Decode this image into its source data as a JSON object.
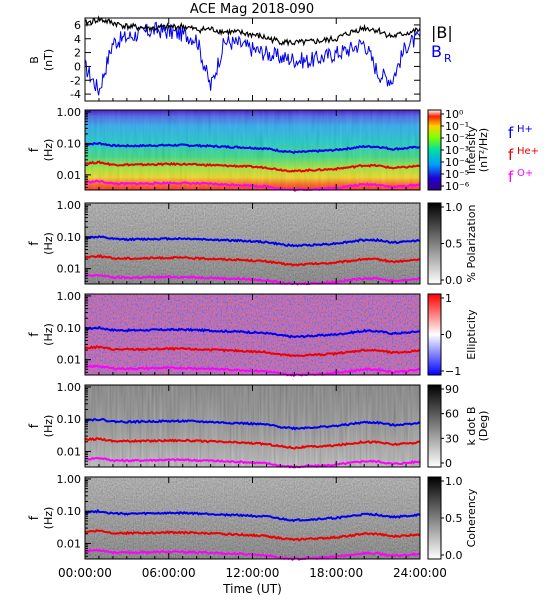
{
  "title": "ACE Mag 2018-090",
  "colors": {
    "b_total": "#000000",
    "b_r": "#0000ee",
    "f_h": "#0000ee",
    "f_he": "#ee0000",
    "f_o": "#ff00ff"
  },
  "chart_data": [
    {
      "type": "line",
      "ylabel": [
        "B",
        "(nT)"
      ],
      "ylim": [
        -5,
        7
      ],
      "yticks": [
        "6",
        "4",
        "2",
        "0",
        "-2",
        "-4"
      ],
      "legend": {
        "b_total": "|B|",
        "b_r": "B",
        "b_r_sub": "R"
      },
      "x_hours": [
        0,
        1,
        2,
        3,
        4,
        5,
        6,
        7,
        8,
        9,
        10,
        11,
        12,
        13,
        14,
        15,
        16,
        17,
        18,
        19,
        20,
        21,
        22,
        23,
        24
      ],
      "series": [
        {
          "key": "b_total",
          "values": [
            6.2,
            6.8,
            6.3,
            5.8,
            5.6,
            5.5,
            5.7,
            5.8,
            5.3,
            5.4,
            5.0,
            4.9,
            4.6,
            4.1,
            3.6,
            3.4,
            3.5,
            3.7,
            4.0,
            4.9,
            5.6,
            5.2,
            4.3,
            4.8,
            5.3
          ]
        },
        {
          "key": "b_r",
          "values": [
            0.0,
            -3.5,
            3.5,
            4.2,
            4.8,
            5.3,
            5.0,
            4.7,
            4.0,
            -3.0,
            3.6,
            3.3,
            2.5,
            1.9,
            1.3,
            1.0,
            0.8,
            1.3,
            1.9,
            2.5,
            3.5,
            -1.0,
            -2.0,
            3.0,
            4.2
          ]
        }
      ]
    },
    {
      "type": "heatmap",
      "ylabel": [
        "f",
        "(Hz)"
      ],
      "colorbar": {
        "label": [
          "Intensity",
          "(nT²/Hz)"
        ],
        "ticks": [
          "10⁰",
          "10⁻¹",
          "10⁻²",
          "10⁻³",
          "10⁻⁴",
          "10⁻⁵",
          "10⁻⁶"
        ]
      },
      "legend": [
        {
          "base": "f",
          "sub": "H+"
        },
        {
          "base": "f",
          "sub": "He+"
        },
        {
          "base": "f",
          "sub": "O+"
        }
      ]
    },
    {
      "type": "heatmap",
      "ylabel": [
        "f",
        "(Hz)"
      ],
      "colorbar": {
        "label": [
          "% Polarization"
        ],
        "ticks": [
          "1.0",
          "0.5",
          "0.0"
        ]
      }
    },
    {
      "type": "heatmap",
      "ylabel": [
        "f",
        "(Hz)"
      ],
      "colorbar": {
        "label": [
          "Ellipticity"
        ],
        "ticks": [
          "1",
          "0",
          "−1"
        ]
      }
    },
    {
      "type": "heatmap",
      "ylabel": [
        "f",
        "(Hz)"
      ],
      "colorbar": {
        "label": [
          "k dot B",
          "(Deg)"
        ],
        "ticks": [
          "90",
          "60",
          "30",
          "0"
        ]
      }
    },
    {
      "type": "heatmap",
      "ylabel": [
        "f",
        "(Hz)"
      ],
      "colorbar": {
        "label": [
          "Coherency"
        ],
        "ticks": [
          "1.0",
          "0.5",
          "0.0"
        ]
      }
    }
  ],
  "shared": {
    "freq_yticks": [
      "1.00",
      "0.10",
      "0.01"
    ],
    "freq_ylim": [
      0.0033,
      1.15
    ],
    "xlabel": "Time (UT)",
    "xticks": [
      "00:00:00",
      "06:00:00",
      "12:00:00",
      "18:00:00",
      "24:00:00"
    ],
    "xlim_hours": [
      0,
      24
    ],
    "gyro_x_hours": [
      0,
      1,
      2,
      3,
      4,
      5,
      6,
      7,
      8,
      9,
      10,
      11,
      12,
      13,
      14,
      15,
      16,
      17,
      18,
      19,
      20,
      21,
      22,
      23,
      24
    ],
    "f_h_plus": [
      0.093,
      0.1,
      0.085,
      0.083,
      0.084,
      0.086,
      0.087,
      0.088,
      0.085,
      0.082,
      0.078,
      0.076,
      0.072,
      0.068,
      0.058,
      0.052,
      0.055,
      0.058,
      0.062,
      0.07,
      0.08,
      0.078,
      0.066,
      0.07,
      0.078
    ],
    "f_he_plus": [
      0.023,
      0.025,
      0.021,
      0.021,
      0.021,
      0.0215,
      0.022,
      0.022,
      0.021,
      0.0205,
      0.0195,
      0.019,
      0.018,
      0.017,
      0.0145,
      0.013,
      0.014,
      0.0145,
      0.0155,
      0.0175,
      0.02,
      0.0195,
      0.0165,
      0.0175,
      0.0195
    ],
    "f_o_plus": [
      0.0058,
      0.0063,
      0.0053,
      0.0052,
      0.0053,
      0.0054,
      0.0055,
      0.0055,
      0.0053,
      0.0052,
      0.0049,
      0.0048,
      0.0045,
      0.0043,
      0.0036,
      0.0033,
      0.0035,
      0.0036,
      0.0039,
      0.0044,
      0.005,
      0.0049,
      0.0041,
      0.0044,
      0.0049
    ]
  }
}
